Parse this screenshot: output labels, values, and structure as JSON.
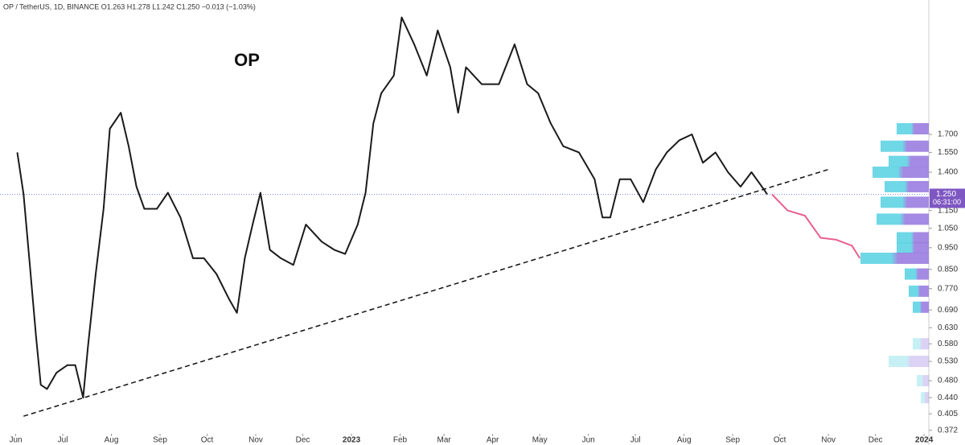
{
  "chart_data": {
    "type": "line",
    "header": "OP / TetherUS, 1D, BINANCE O1.263 H1.278 L1.242 C1.250 −0.013 (−1.03%)",
    "annotation": "OP",
    "log_scale": true,
    "xlim": [
      -10,
      582
    ],
    "ylim": [
      0.345,
      3.39
    ],
    "xticks": [
      {
        "value": 0,
        "label": "Jun"
      },
      {
        "value": 30,
        "label": "Jul"
      },
      {
        "value": 61,
        "label": "Aug"
      },
      {
        "value": 92,
        "label": "Sep"
      },
      {
        "value": 122,
        "label": "Oct"
      },
      {
        "value": 153,
        "label": "Nov"
      },
      {
        "value": 183,
        "label": "Dec"
      },
      {
        "value": 214,
        "label": "2023"
      },
      {
        "value": 245,
        "label": "Feb"
      },
      {
        "value": 273,
        "label": "Mar"
      },
      {
        "value": 304,
        "label": "Apr"
      },
      {
        "value": 334,
        "label": "May"
      },
      {
        "value": 365,
        "label": "Jun"
      },
      {
        "value": 395,
        "label": "Jul"
      },
      {
        "value": 426,
        "label": "Aug"
      },
      {
        "value": 457,
        "label": "Sep"
      },
      {
        "value": 487,
        "label": "Oct"
      },
      {
        "value": 518,
        "label": "Nov"
      },
      {
        "value": 548,
        "label": "Dec"
      },
      {
        "value": 579,
        "label": "2024"
      }
    ],
    "yticks": [
      {
        "value": 1.7,
        "label": "1.700"
      },
      {
        "value": 1.55,
        "label": "1.550"
      },
      {
        "value": 1.4,
        "label": "1.400"
      },
      {
        "value": 1.15,
        "label": "1.150"
      },
      {
        "value": 1.05,
        "label": "1.050"
      },
      {
        "value": 0.95,
        "label": "0.950"
      },
      {
        "value": 0.85,
        "label": "0.850"
      },
      {
        "value": 0.77,
        "label": "0.770"
      },
      {
        "value": 0.69,
        "label": "0.690"
      },
      {
        "value": 0.63,
        "label": "0.630"
      },
      {
        "value": 0.58,
        "label": "0.580"
      },
      {
        "value": 0.53,
        "label": "0.530"
      },
      {
        "value": 0.48,
        "label": "0.480"
      },
      {
        "value": 0.44,
        "label": "0.440"
      },
      {
        "value": 0.405,
        "label": "0.405"
      },
      {
        "value": 0.372,
        "label": "0.372"
      }
    ],
    "last_price": {
      "value": 1.25,
      "label": "1.250",
      "countdown": "06:31:00",
      "color": "#7e57c2"
    },
    "series": [
      {
        "color": "#1a1a1a",
        "x": [
          1,
          5,
          9,
          13,
          16,
          20,
          26,
          33,
          38,
          43,
          46,
          51,
          56,
          60,
          67,
          72,
          77,
          82,
          90,
          97,
          105,
          113,
          120,
          128,
          136,
          141,
          146,
          151,
          156,
          162,
          169,
          177,
          185,
          195,
          203,
          210,
          218,
          223,
          228,
          233,
          241,
          246,
          254,
          262,
          269,
          277,
          282,
          287,
          297,
          308,
          318,
          326,
          333,
          341,
          349,
          359,
          369,
          374,
          379,
          385,
          392,
          400,
          408,
          415,
          423,
          431,
          438,
          446,
          454,
          462,
          469,
          477,
          479
        ],
        "values": [
          1.55,
          1.25,
          0.87,
          0.6,
          0.47,
          0.46,
          0.5,
          0.52,
          0.52,
          0.44,
          0.57,
          0.83,
          1.16,
          1.75,
          1.9,
          1.6,
          1.3,
          1.16,
          1.16,
          1.26,
          1.11,
          0.9,
          0.9,
          0.83,
          0.73,
          0.68,
          0.9,
          1.07,
          1.26,
          0.94,
          0.9,
          0.87,
          1.07,
          0.98,
          0.94,
          0.92,
          1.07,
          1.26,
          1.8,
          2.1,
          2.3,
          3.1,
          2.7,
          2.3,
          2.9,
          2.4,
          1.9,
          2.4,
          2.2,
          2.2,
          2.7,
          2.2,
          2.1,
          1.8,
          1.6,
          1.55,
          1.35,
          1.11,
          1.11,
          1.35,
          1.35,
          1.2,
          1.42,
          1.55,
          1.65,
          1.7,
          1.47,
          1.55,
          1.4,
          1.3,
          1.4,
          1.28,
          1.25
        ]
      },
      {
        "color": "#e8608f",
        "x": [
          482,
          492,
          503,
          513,
          523,
          533,
          538
        ],
        "values": [
          1.25,
          1.15,
          1.12,
          1.0,
          0.99,
          0.96,
          0.9
        ]
      }
    ],
    "trendline": {
      "x": [
        5,
        518
      ],
      "values": [
        0.4,
        1.42
      ]
    },
    "volume_profile": {
      "colors": [
        "#5fd3e3",
        "#9a7de0"
      ],
      "levels": [
        1.75,
        1.6,
        1.48,
        1.4,
        1.3,
        1.2,
        1.1,
        1.0,
        0.95,
        0.9,
        0.83,
        0.76,
        0.7,
        0.58,
        0.53,
        0.48,
        0.44
      ],
      "values": [
        40,
        60,
        50,
        70,
        55,
        60,
        65,
        40,
        40,
        85,
        30,
        25,
        20,
        20,
        50,
        15,
        10
      ]
    }
  }
}
